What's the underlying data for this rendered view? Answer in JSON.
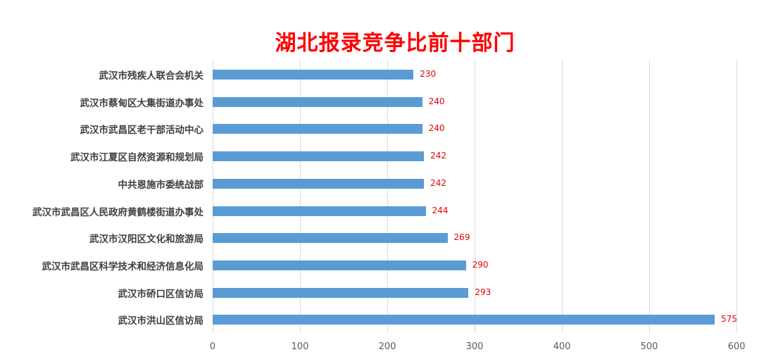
{
  "chart_data": {
    "type": "bar",
    "orientation": "horizontal",
    "title": "湖北报录竞争比前十部门",
    "xlabel": "",
    "ylabel": "",
    "xlim": [
      0,
      600
    ],
    "x_ticks": [
      "0",
      "100",
      "200",
      "300",
      "400",
      "500",
      "600"
    ],
    "grid": true,
    "legend": null,
    "categories": [
      "武汉市残疾人联合会机关",
      "武汉市蔡甸区大集街道办事处",
      "武汉市武昌区老干部活动中心",
      "武汉市江夏区自然资源和规划局",
      "中共恩施市委统战部",
      "武汉市武昌区人民政府黄鹤楼街道办事处",
      "武汉市汉阳区文化和旅游局",
      "武汉市武昌区科学技术和经济信息化局",
      "武汉市硚口区信访局",
      "武汉市洪山区信访局"
    ],
    "values": [
      230,
      240,
      240,
      242,
      242,
      244,
      269,
      290,
      293,
      575
    ],
    "value_labels": [
      "230",
      "240",
      "240",
      "242",
      "242",
      "244",
      "269",
      "290",
      "293",
      "575"
    ],
    "colors": {
      "bar": "#5b9bd5",
      "data_label": "#e8000b",
      "title": "#ff0000",
      "grid": "#d9d9d9"
    }
  }
}
